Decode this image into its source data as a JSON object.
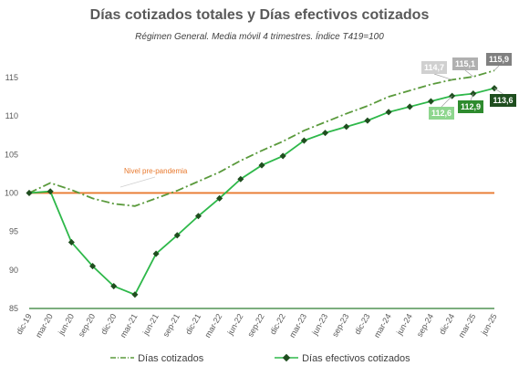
{
  "chart_data": {
    "type": "line",
    "title": "Días cotizados totales y Días efectivos cotizados",
    "subtitle": "Régimen General. Media móvil 4 trimestres. Índice T419=100",
    "categories": [
      "dic-19",
      "mar-20",
      "jun-20",
      "sep-20",
      "dic-20",
      "mar-21",
      "jun-21",
      "sep-21",
      "dic-21",
      "mar-22",
      "jun-22",
      "sep-22",
      "dic-22",
      "mar-23",
      "jun-23",
      "sep-23",
      "dic-23",
      "mar-24",
      "jun-24",
      "sep-24",
      "dic-24",
      "mar-25",
      "jun-25"
    ],
    "y_ticks": [
      "85",
      "90",
      "95",
      "100",
      "105",
      "110",
      "115"
    ],
    "ylim": [
      85,
      117
    ],
    "series": [
      {
        "name": "Días cotizados",
        "color": "#5a9a3c",
        "values": [
          100,
          101.3,
          100.4,
          99.3,
          98.6,
          98.3,
          99.3,
          100.3,
          101.5,
          102.7,
          104.2,
          105.5,
          106.7,
          108.1,
          109.2,
          110.3,
          111.3,
          112.5,
          113.3,
          114.1,
          114.7,
          115.1,
          115.9
        ]
      },
      {
        "name": "Días efectivos cotizados",
        "color": "#2eb84a",
        "values": [
          100,
          100.2,
          93.6,
          90.5,
          87.9,
          86.8,
          92.1,
          94.5,
          97,
          99.3,
          101.8,
          103.6,
          104.8,
          106.8,
          107.8,
          108.6,
          109.4,
          110.5,
          111.2,
          111.9,
          112.6,
          112.9,
          113.6
        ]
      }
    ],
    "reference_line": {
      "value": 100,
      "label": "Nivel pre-pandemia",
      "color": "#e8792e"
    },
    "value_labels": [
      {
        "text": "114,7",
        "color": "#d0d0d0"
      },
      {
        "text": "115,1",
        "color": "#b0b0b0"
      },
      {
        "text": "115,9",
        "color": "#808080"
      },
      {
        "text": "112,6",
        "color": "#8ed68e"
      },
      {
        "text": "112,9",
        "color": "#2e8b2e"
      },
      {
        "text": "113,6",
        "color": "#1f4e1f"
      }
    ],
    "grid": false,
    "legend": "bottom"
  }
}
